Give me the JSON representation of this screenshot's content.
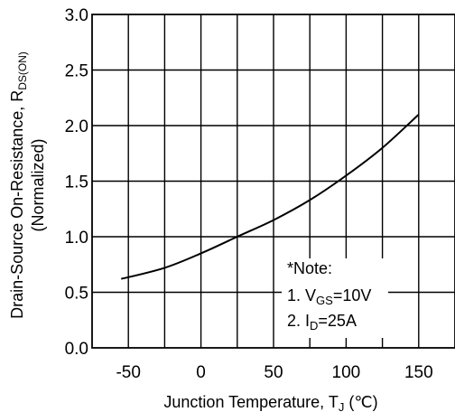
{
  "chart_data": {
    "type": "line",
    "xlabel": "Junction Temperature, T",
    "xlabel_sub": "J",
    "xlabel_unit": " (℃)",
    "ylabel_line1": "Drain-Source On-Resistance, R",
    "ylabel_sub": "DS(ON)",
    "ylabel_line2": "(Normalized)",
    "xlim": [
      -75,
      175
    ],
    "ylim": [
      0.0,
      3.0
    ],
    "x_ticks": [
      -50,
      0,
      50,
      100,
      150
    ],
    "x_tick_labels": [
      "-50",
      "0",
      "50",
      "100",
      "150"
    ],
    "y_ticks": [
      0.0,
      0.5,
      1.0,
      1.5,
      2.0,
      2.5,
      3.0
    ],
    "y_tick_labels": [
      "0.0",
      "0.5",
      "1.0",
      "1.5",
      "2.0",
      "2.5",
      "3.0"
    ],
    "grid": true,
    "series": [
      {
        "x": [
          -55,
          -25,
          0,
          25,
          50,
          75,
          100,
          125,
          150
        ],
        "values": [
          0.62,
          0.72,
          0.85,
          1.0,
          1.15,
          1.33,
          1.55,
          1.8,
          2.1
        ]
      }
    ],
    "note": {
      "title": "*Note:",
      "line1_prefix": "1. V",
      "line1_sub": "GS",
      "line1_suffix": "=10V",
      "line2_prefix": "2. I",
      "line2_sub": "D",
      "line2_suffix": "=25A"
    }
  }
}
